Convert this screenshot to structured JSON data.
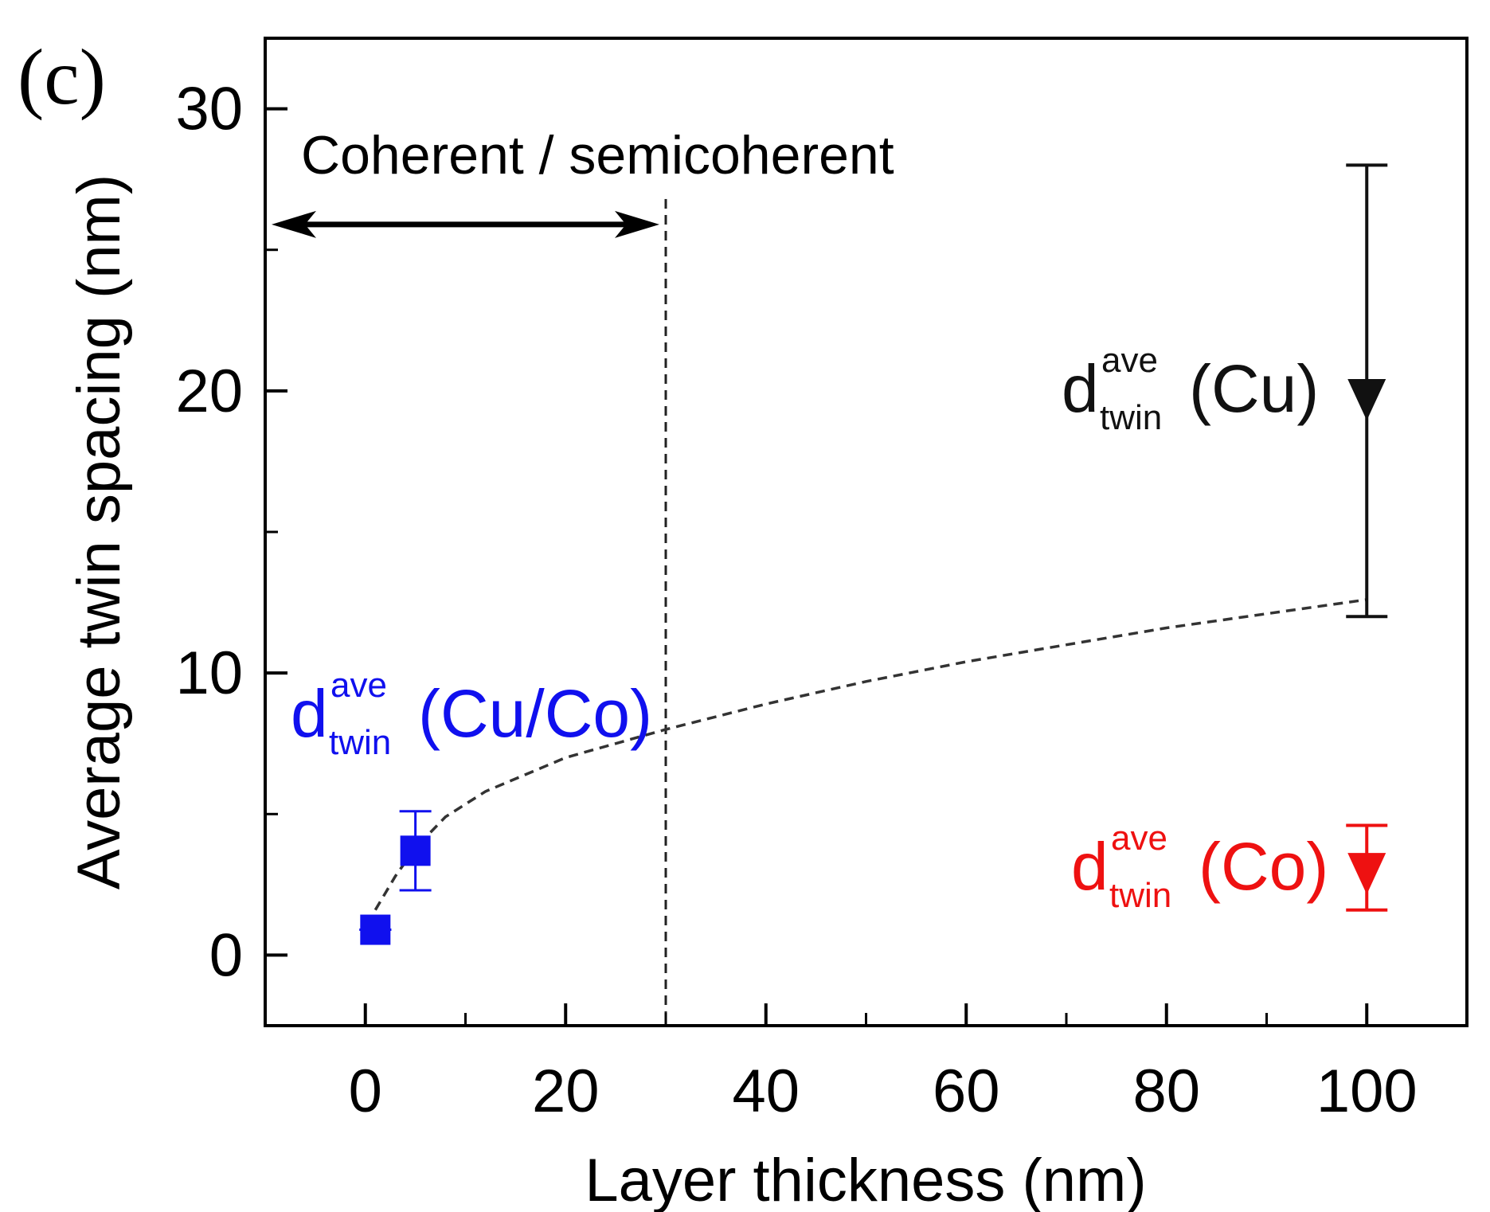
{
  "panel_label": "(c)",
  "chart_data": {
    "type": "scatter",
    "title": "",
    "xlabel": "Layer thickness (nm)",
    "ylabel": "Average twin spacing (nm)",
    "xlim": [
      -10,
      110
    ],
    "ylim": [
      -2.5,
      32.5
    ],
    "x_ticks": [
      0,
      20,
      40,
      60,
      80,
      100
    ],
    "x_minor_ticks": [
      10,
      30,
      50,
      70,
      90
    ],
    "y_ticks": [
      0,
      10,
      20,
      30
    ],
    "y_minor_ticks": [
      5,
      15,
      25
    ],
    "series": [
      {
        "name": "Cu/Co",
        "marker": "square",
        "color": "#1010ee",
        "points": [
          {
            "x": 1,
            "y": 0.9,
            "yerr_low": 0.9,
            "yerr_high": 0.9
          },
          {
            "x": 5,
            "y": 3.7,
            "yerr_low": 2.3,
            "yerr_high": 5.1
          }
        ]
      },
      {
        "name": "Cu",
        "marker": "triangle-down",
        "color": "#111111",
        "points": [
          {
            "x": 100,
            "y": 19.8,
            "yerr_low": 12.0,
            "yerr_high": 28.0
          }
        ]
      },
      {
        "name": "Co",
        "marker": "triangle-down",
        "color": "#ee1111",
        "points": [
          {
            "x": 100,
            "y": 3.0,
            "yerr_low": 1.6,
            "yerr_high": 4.6
          }
        ]
      }
    ],
    "fit_curve": {
      "style": "dashed",
      "color": "#333333",
      "points": [
        [
          1,
          1.6
        ],
        [
          2,
          2.2
        ],
        [
          3,
          2.8
        ],
        [
          5,
          3.8
        ],
        [
          8,
          4.9
        ],
        [
          12,
          5.8
        ],
        [
          20,
          7.0
        ],
        [
          30,
          8.0
        ],
        [
          40,
          8.9
        ],
        [
          50,
          9.7
        ],
        [
          60,
          10.4
        ],
        [
          70,
          11.0
        ],
        [
          80,
          11.6
        ],
        [
          90,
          12.1
        ],
        [
          100,
          12.6
        ]
      ]
    },
    "vertical_line": {
      "x": 30,
      "style": "dashed"
    },
    "region_arrow": {
      "x_start": -10,
      "x_end": 30,
      "y": 25.9,
      "label": "Coherent / semicoherent"
    },
    "annotations": [
      {
        "series": "Cu/Co",
        "main": "d",
        "sup": "ave",
        "sub": "twin",
        "suffix": "(Cu/Co)",
        "color": "#1010ee"
      },
      {
        "series": "Cu",
        "main": "d",
        "sup": "ave",
        "sub": "twin",
        "suffix": "(Cu)",
        "color": "#111111"
      },
      {
        "series": "Co",
        "main": "d",
        "sup": "ave",
        "sub": "twin",
        "suffix": "(Co)",
        "color": "#ee1111"
      }
    ]
  }
}
